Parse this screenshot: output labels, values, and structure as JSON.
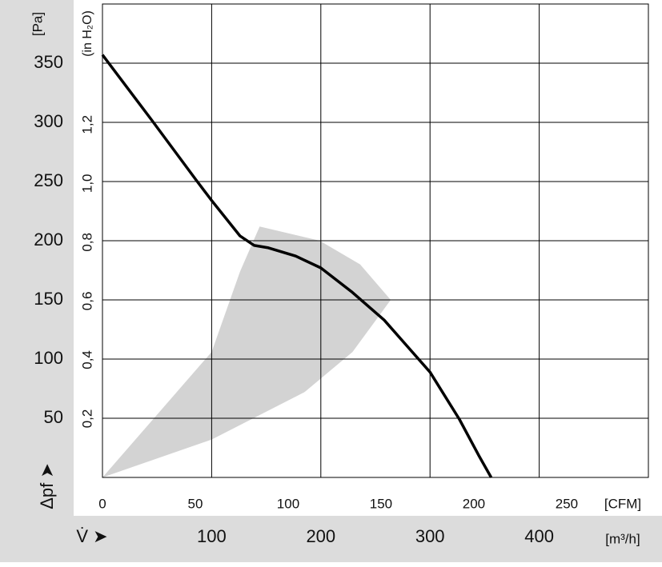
{
  "chart_data": {
    "type": "line",
    "y_unit_label": "[Pa]",
    "y2_unit_label": "(in H₂O)",
    "y_axis_symbol": "Δpf ➤",
    "x_axis_symbol": "V̇ ➤",
    "x_unit_label": "[m³/h]",
    "x2_unit_label": "[CFM]",
    "xlim": [
      0,
      500
    ],
    "xticks": [
      100,
      200,
      300,
      400
    ],
    "x2lim": [
      0,
      294
    ],
    "x2ticks": [
      0,
      50,
      100,
      150,
      200,
      250
    ],
    "ylim": [
      0,
      400
    ],
    "yticks": [
      50,
      100,
      150,
      200,
      250,
      300,
      350
    ],
    "y2lim": [
      0,
      1.61
    ],
    "y2ticks": [
      {
        "value": 0.2,
        "label": "0,2"
      },
      {
        "value": 0.4,
        "label": "0,4"
      },
      {
        "value": 0.6,
        "label": "0,6"
      },
      {
        "value": 0.8,
        "label": "0,8"
      },
      {
        "value": 1.0,
        "label": "1,0"
      },
      {
        "value": 1.2,
        "label": "1,2"
      }
    ],
    "grid": true,
    "curve": {
      "color": "#000000",
      "x": [
        0,
        45,
        86,
        100,
        126,
        139,
        152,
        177,
        200,
        228,
        258,
        300,
        327,
        345,
        356
      ],
      "y": [
        357,
        302,
        251,
        234,
        204,
        196,
        194,
        187,
        177,
        157,
        133,
        89,
        49,
        18,
        0
      ]
    },
    "operating_range": {
      "color": "#d3d3d3",
      "x": [
        0,
        100,
        126,
        144,
        199,
        236,
        264,
        229,
        185,
        100
      ],
      "y": [
        0,
        106,
        174,
        212,
        200,
        180,
        150,
        106,
        72,
        32
      ]
    }
  }
}
